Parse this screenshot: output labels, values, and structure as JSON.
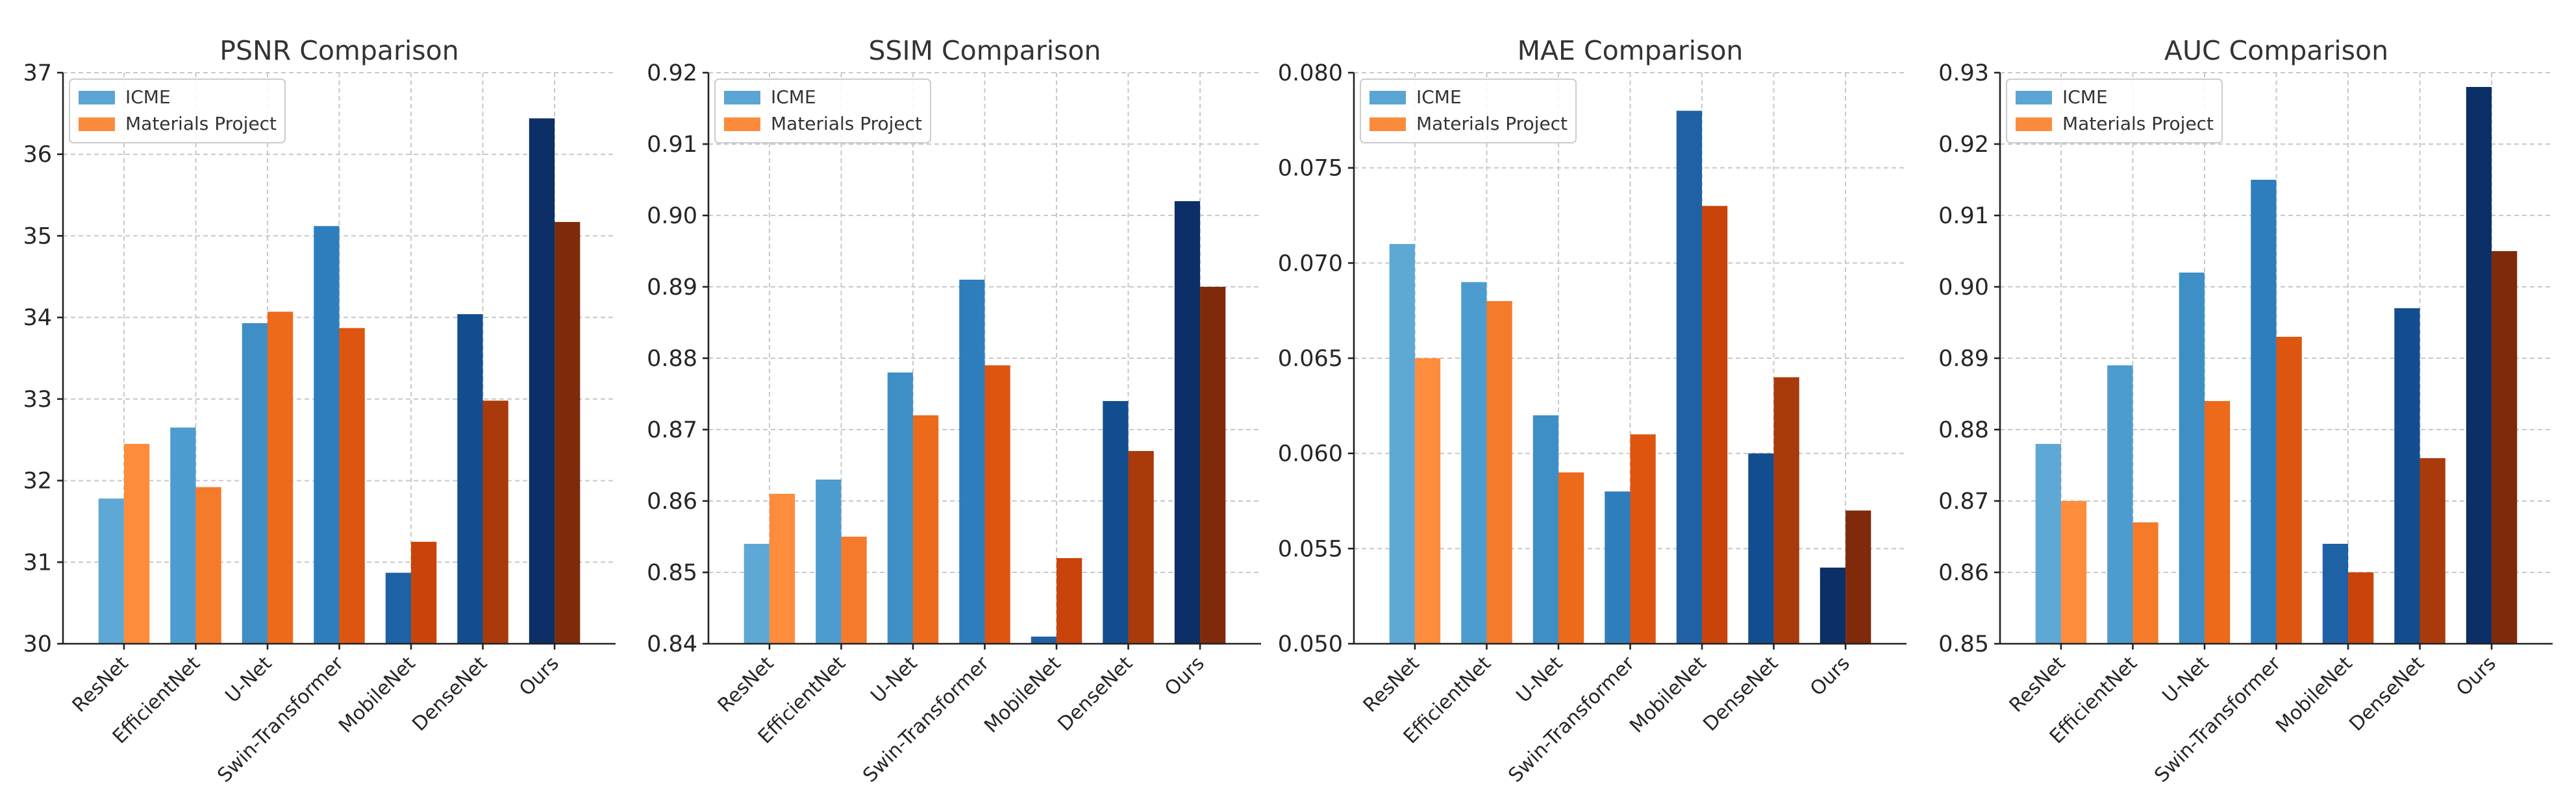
{
  "chart_data": [
    {
      "type": "bar",
      "title": "PSNR Comparison",
      "categories": [
        "ResNet",
        "EfficientNet",
        "U-Net",
        "Swin-Transformer",
        "MobileNet",
        "DenseNet",
        "Ours"
      ],
      "series": [
        {
          "name": "ICME",
          "values": [
            31.78,
            32.65,
            33.93,
            35.12,
            30.87,
            34.04,
            36.44
          ]
        },
        {
          "name": "Materials Project",
          "values": [
            32.45,
            31.92,
            34.07,
            33.87,
            31.25,
            32.98,
            35.17
          ]
        }
      ],
      "ylim": [
        30,
        37
      ],
      "yticks": [
        30,
        31,
        32,
        33,
        34,
        35,
        36,
        37
      ],
      "ytick_labels": [
        "30",
        "31",
        "32",
        "33",
        "34",
        "35",
        "36",
        "37"
      ],
      "xlabel": "",
      "ylabel": "",
      "grid": true,
      "legend_position": "upper-left"
    },
    {
      "type": "bar",
      "title": "SSIM Comparison",
      "categories": [
        "ResNet",
        "EfficientNet",
        "U-Net",
        "Swin-Transformer",
        "MobileNet",
        "DenseNet",
        "Ours"
      ],
      "series": [
        {
          "name": "ICME",
          "values": [
            0.854,
            0.863,
            0.878,
            0.891,
            0.841,
            0.874,
            0.902
          ]
        },
        {
          "name": "Materials Project",
          "values": [
            0.861,
            0.855,
            0.872,
            0.879,
            0.852,
            0.867,
            0.89
          ]
        }
      ],
      "ylim": [
        0.84,
        0.92
      ],
      "yticks": [
        0.84,
        0.85,
        0.86,
        0.87,
        0.88,
        0.89,
        0.9,
        0.91,
        0.92
      ],
      "ytick_labels": [
        "0.84",
        "0.85",
        "0.86",
        "0.87",
        "0.88",
        "0.89",
        "0.90",
        "0.91",
        "0.92"
      ],
      "xlabel": "",
      "ylabel": "",
      "grid": true,
      "legend_position": "upper-left"
    },
    {
      "type": "bar",
      "title": "MAE Comparison",
      "categories": [
        "ResNet",
        "EfficientNet",
        "U-Net",
        "Swin-Transformer",
        "MobileNet",
        "DenseNet",
        "Ours"
      ],
      "series": [
        {
          "name": "ICME",
          "values": [
            0.071,
            0.069,
            0.062,
            0.058,
            0.078,
            0.06,
            0.054
          ]
        },
        {
          "name": "Materials Project",
          "values": [
            0.065,
            0.068,
            0.059,
            0.061,
            0.073,
            0.064,
            0.057
          ]
        }
      ],
      "ylim": [
        0.05,
        0.08
      ],
      "yticks": [
        0.05,
        0.055,
        0.06,
        0.065,
        0.07,
        0.075,
        0.08
      ],
      "ytick_labels": [
        "0.050",
        "0.055",
        "0.060",
        "0.065",
        "0.070",
        "0.075",
        "0.080"
      ],
      "xlabel": "",
      "ylabel": "",
      "grid": true,
      "legend_position": "upper-left"
    },
    {
      "type": "bar",
      "title": "AUC Comparison",
      "categories": [
        "ResNet",
        "EfficientNet",
        "U-Net",
        "Swin-Transformer",
        "MobileNet",
        "DenseNet",
        "Ours"
      ],
      "series": [
        {
          "name": "ICME",
          "values": [
            0.878,
            0.889,
            0.902,
            0.915,
            0.864,
            0.897,
            0.928
          ]
        },
        {
          "name": "Materials Project",
          "values": [
            0.87,
            0.867,
            0.884,
            0.893,
            0.86,
            0.876,
            0.905
          ]
        }
      ],
      "ylim": [
        0.85,
        0.93
      ],
      "yticks": [
        0.85,
        0.86,
        0.87,
        0.88,
        0.89,
        0.9,
        0.91,
        0.92,
        0.93
      ],
      "ytick_labels": [
        "0.85",
        "0.86",
        "0.87",
        "0.88",
        "0.89",
        "0.90",
        "0.91",
        "0.92",
        "0.93"
      ],
      "xlabel": "",
      "ylabel": "",
      "grid": true,
      "legend_position": "upper-left"
    }
  ],
  "colors": {
    "series_0_gradient": [
      "#5ea8d6",
      "#4d9ccf",
      "#3f8fc7",
      "#2e7ebe",
      "#1e61a5",
      "#124d8f",
      "#0b2f66"
    ],
    "series_1_gradient": [
      "#fd8d3c",
      "#f57a2a",
      "#ec6a1a",
      "#de5510",
      "#c9440a",
      "#a93a0c",
      "#7f2a0b"
    ],
    "legend_swatches": [
      "#5aa5d4",
      "#fb8b3b"
    ]
  }
}
